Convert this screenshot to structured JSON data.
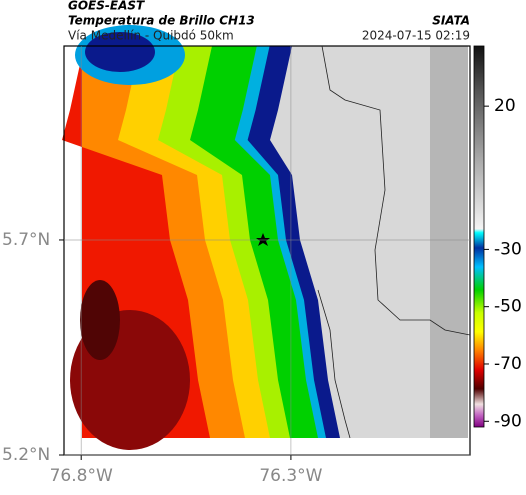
{
  "header": {
    "satellite": "GOES-EAST",
    "title": "Temperatura de Brillo CH13",
    "subtitle": "Vía Medellín - Quibdó 50km",
    "source": "SIATA",
    "datetime": "2024-07-15 02:19"
  },
  "map": {
    "xlim": [
      -76.841,
      -75.873
    ],
    "ylim": [
      5.2,
      6.151
    ],
    "xticks": [
      {
        "value": -76.8,
        "label": "76.8°W"
      },
      {
        "value": -76.3,
        "label": "76.3°W"
      }
    ],
    "yticks": [
      {
        "value": 5.7,
        "label": "5.7°N"
      },
      {
        "value": 5.2,
        "label": "5.2°N"
      }
    ]
  },
  "colorbar": {
    "lim": [
      -92,
      41
    ],
    "ticks": [
      20,
      -30,
      -50,
      -70,
      -90
    ]
  }
}
